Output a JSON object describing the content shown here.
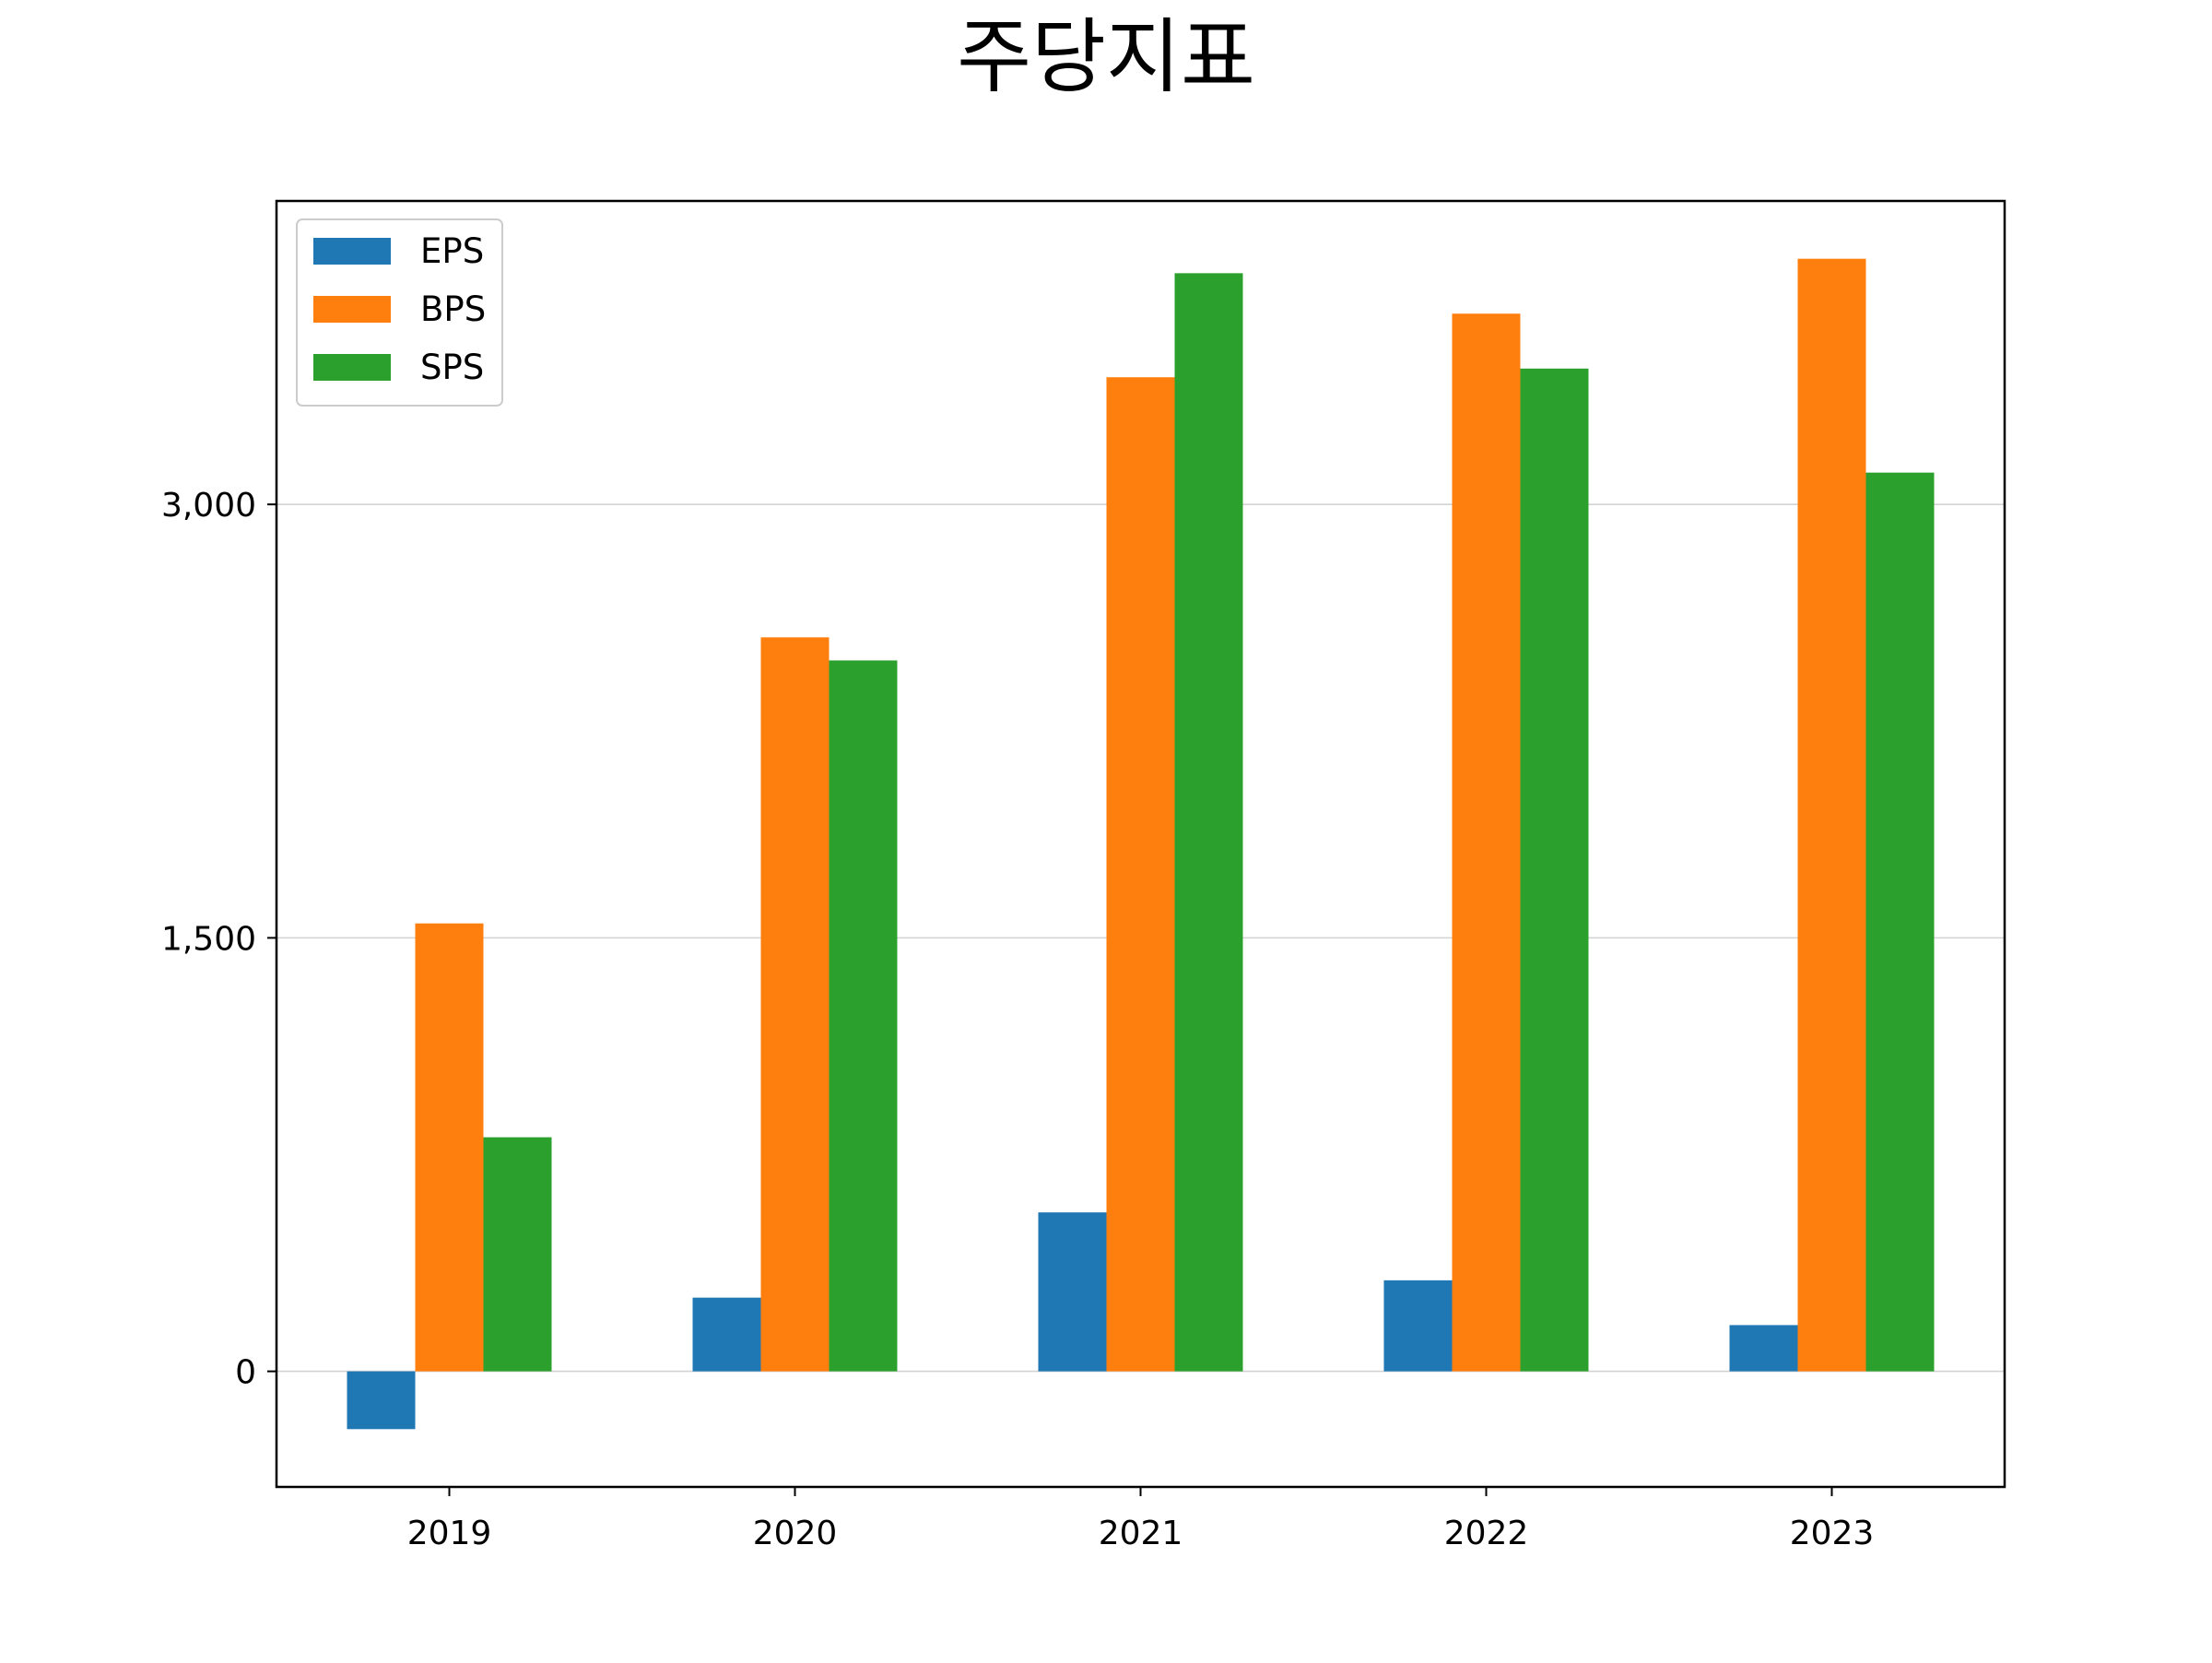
{
  "chart_data": {
    "type": "bar",
    "title": "주당지표",
    "xlabel": "",
    "ylabel": "",
    "categories": [
      "2019",
      "2020",
      "2021",
      "2022",
      "2023"
    ],
    "series": [
      {
        "name": "EPS",
        "color": "#1f77b4",
        "values": [
          -200,
          255,
          550,
          315,
          160
        ]
      },
      {
        "name": "BPS",
        "color": "#ff7f0e",
        "values": [
          1550,
          2540,
          3440,
          3660,
          3850
        ]
      },
      {
        "name": "SPS",
        "color": "#2ca02c",
        "values": [
          810,
          2460,
          3800,
          3470,
          3110
        ]
      }
    ],
    "ylim": [
      -400,
      4050
    ],
    "yticks": [
      0,
      1500,
      3000
    ],
    "ytick_labels": [
      "0",
      "1,500",
      "3,000"
    ],
    "grid": {
      "y": true,
      "x": false
    },
    "legend_position": "upper-left"
  }
}
